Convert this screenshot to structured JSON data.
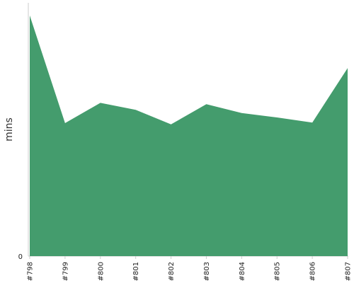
{
  "chart_data": {
    "type": "area",
    "title": "",
    "xlabel": "",
    "ylabel": "mins",
    "categories": [
      "#798",
      "#799",
      "#800",
      "#801",
      "#802",
      "#803",
      "#804",
      "#805",
      "#806",
      "#807"
    ],
    "series": [
      {
        "values": [
          38.0,
          21.0,
          24.2,
          23.1,
          20.8,
          24.0,
          22.6,
          21.9,
          21.1,
          29.7
        ]
      }
    ],
    "y_ticks": [
      "0"
    ],
    "ylim": [
      0,
      40
    ],
    "grid": false,
    "legend": "none",
    "colors": {
      "area": "#449c6d",
      "axis": "#cccccc"
    }
  }
}
